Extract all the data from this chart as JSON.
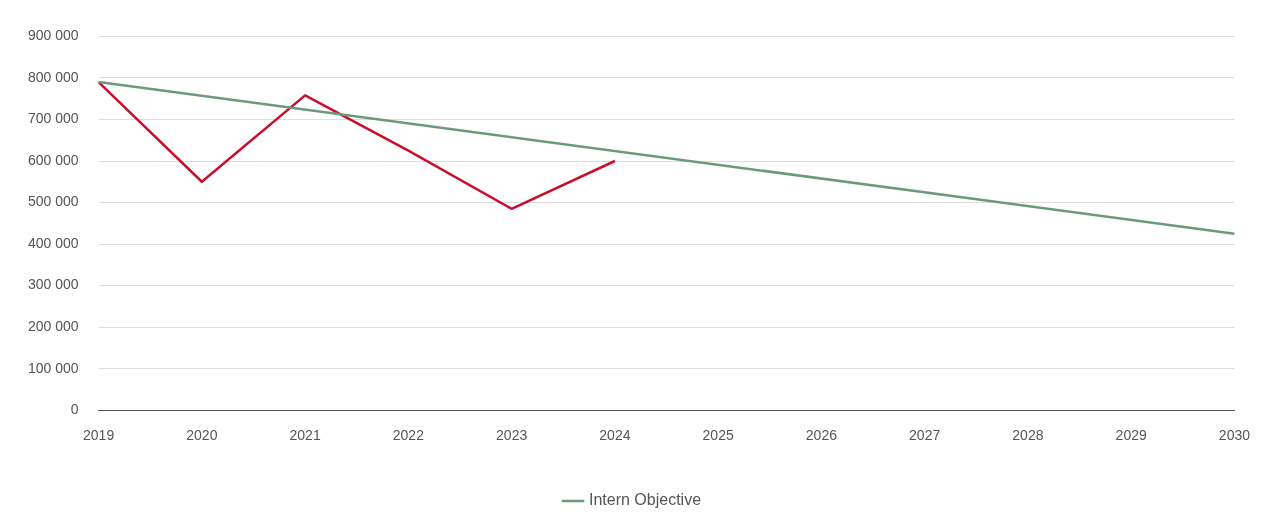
{
  "chart_data": {
    "type": "line",
    "categories": [
      "2019",
      "2020",
      "2021",
      "2022",
      "2023",
      "2024",
      "2025",
      "2026",
      "2027",
      "2028",
      "2029",
      "2030"
    ],
    "series": [
      {
        "name": "Intern Objective",
        "color": "#6a9a7a",
        "values": [
          790000,
          null,
          null,
          null,
          null,
          null,
          null,
          null,
          null,
          null,
          null,
          425000
        ]
      },
      {
        "color": "#c8102e",
        "values": [
          790000,
          550000,
          758000,
          625000,
          485000,
          600000,
          null,
          null,
          null,
          null,
          null,
          null
        ]
      }
    ],
    "ylim": [
      0,
      900000
    ],
    "yticks": [
      {
        "value": 0,
        "label": "0"
      },
      {
        "value": 100000,
        "label": "100 000"
      },
      {
        "value": 200000,
        "label": "200 000"
      },
      {
        "value": 300000,
        "label": "300 000"
      },
      {
        "value": 400000,
        "label": "400 000"
      },
      {
        "value": 500000,
        "label": "500 000"
      },
      {
        "value": 600000,
        "label": "600 000"
      },
      {
        "value": 700000,
        "label": "700 000"
      },
      {
        "value": 800000,
        "label": "800 000"
      },
      {
        "value": 900000,
        "label": "900 000"
      }
    ],
    "grid": "y",
    "legend": "bottom",
    "marker": "none",
    "line_style": "solid"
  }
}
